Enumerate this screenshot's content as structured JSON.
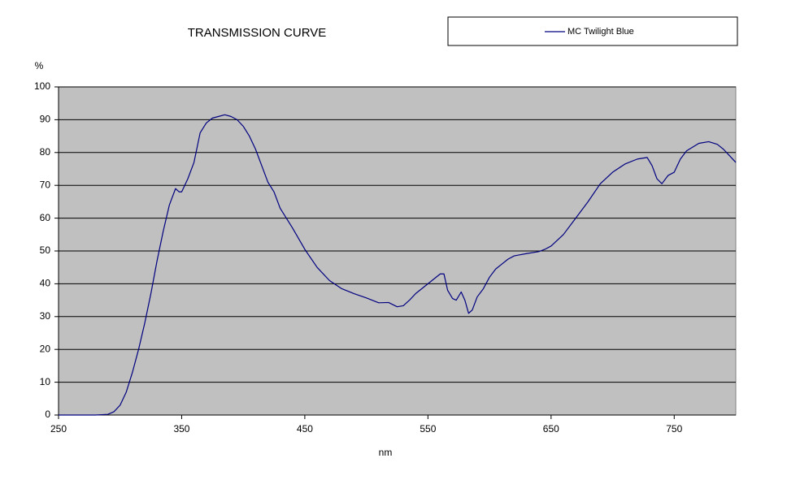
{
  "chart_data": {
    "type": "line",
    "title": "TRANSMISSION CURVE",
    "xlabel": "nm",
    "ylabel": "%",
    "x": [
      250,
      280,
      290,
      295,
      300,
      305,
      310,
      315,
      320,
      325,
      330,
      335,
      340,
      345,
      348,
      350,
      355,
      360,
      365,
      370,
      375,
      380,
      385,
      390,
      395,
      400,
      405,
      410,
      415,
      420,
      425,
      430,
      440,
      450,
      460,
      470,
      480,
      490,
      500,
      510,
      518,
      525,
      530,
      535,
      540,
      550,
      560,
      563,
      566,
      570,
      573,
      577,
      580,
      583,
      586,
      590,
      595,
      600,
      605,
      610,
      615,
      620,
      630,
      640,
      645,
      650,
      660,
      670,
      680,
      690,
      700,
      710,
      720,
      728,
      732,
      736,
      740,
      745,
      750,
      755,
      760,
      770,
      778,
      785,
      790,
      795,
      800
    ],
    "series": [
      {
        "name": "MC Twilight Blue",
        "color": "#000080",
        "values": [
          0,
          0,
          0.2,
          1,
          3,
          7,
          13,
          20,
          28,
          37,
          47,
          56,
          64,
          69,
          68,
          68,
          72,
          77,
          86,
          89,
          90.5,
          91,
          91.5,
          91,
          90,
          88,
          85,
          81,
          76,
          71,
          68,
          63,
          57,
          50.5,
          45,
          41,
          38.5,
          37,
          35.7,
          34.2,
          34.3,
          33,
          33.3,
          35,
          37,
          40,
          43,
          43,
          38,
          35.5,
          35,
          37.5,
          35,
          31,
          32,
          36,
          38.5,
          42,
          44.5,
          46,
          47.5,
          48.5,
          49.2,
          49.8,
          50.5,
          51.5,
          55,
          60,
          65,
          70.5,
          74,
          76.5,
          78,
          78.5,
          76,
          72,
          70.5,
          73,
          74,
          78,
          80.5,
          82.8,
          83.3,
          82.5,
          81,
          79,
          77
        ]
      }
    ],
    "xlim": [
      250,
      800
    ],
    "xticks": [
      250,
      350,
      450,
      550,
      650,
      750
    ],
    "ylim": [
      0,
      100
    ],
    "yticks": [
      0,
      10,
      20,
      30,
      40,
      50,
      60,
      70,
      80,
      90,
      100
    ],
    "grid": true,
    "plot_background": "#c0c0c0",
    "legend": "top-right"
  }
}
